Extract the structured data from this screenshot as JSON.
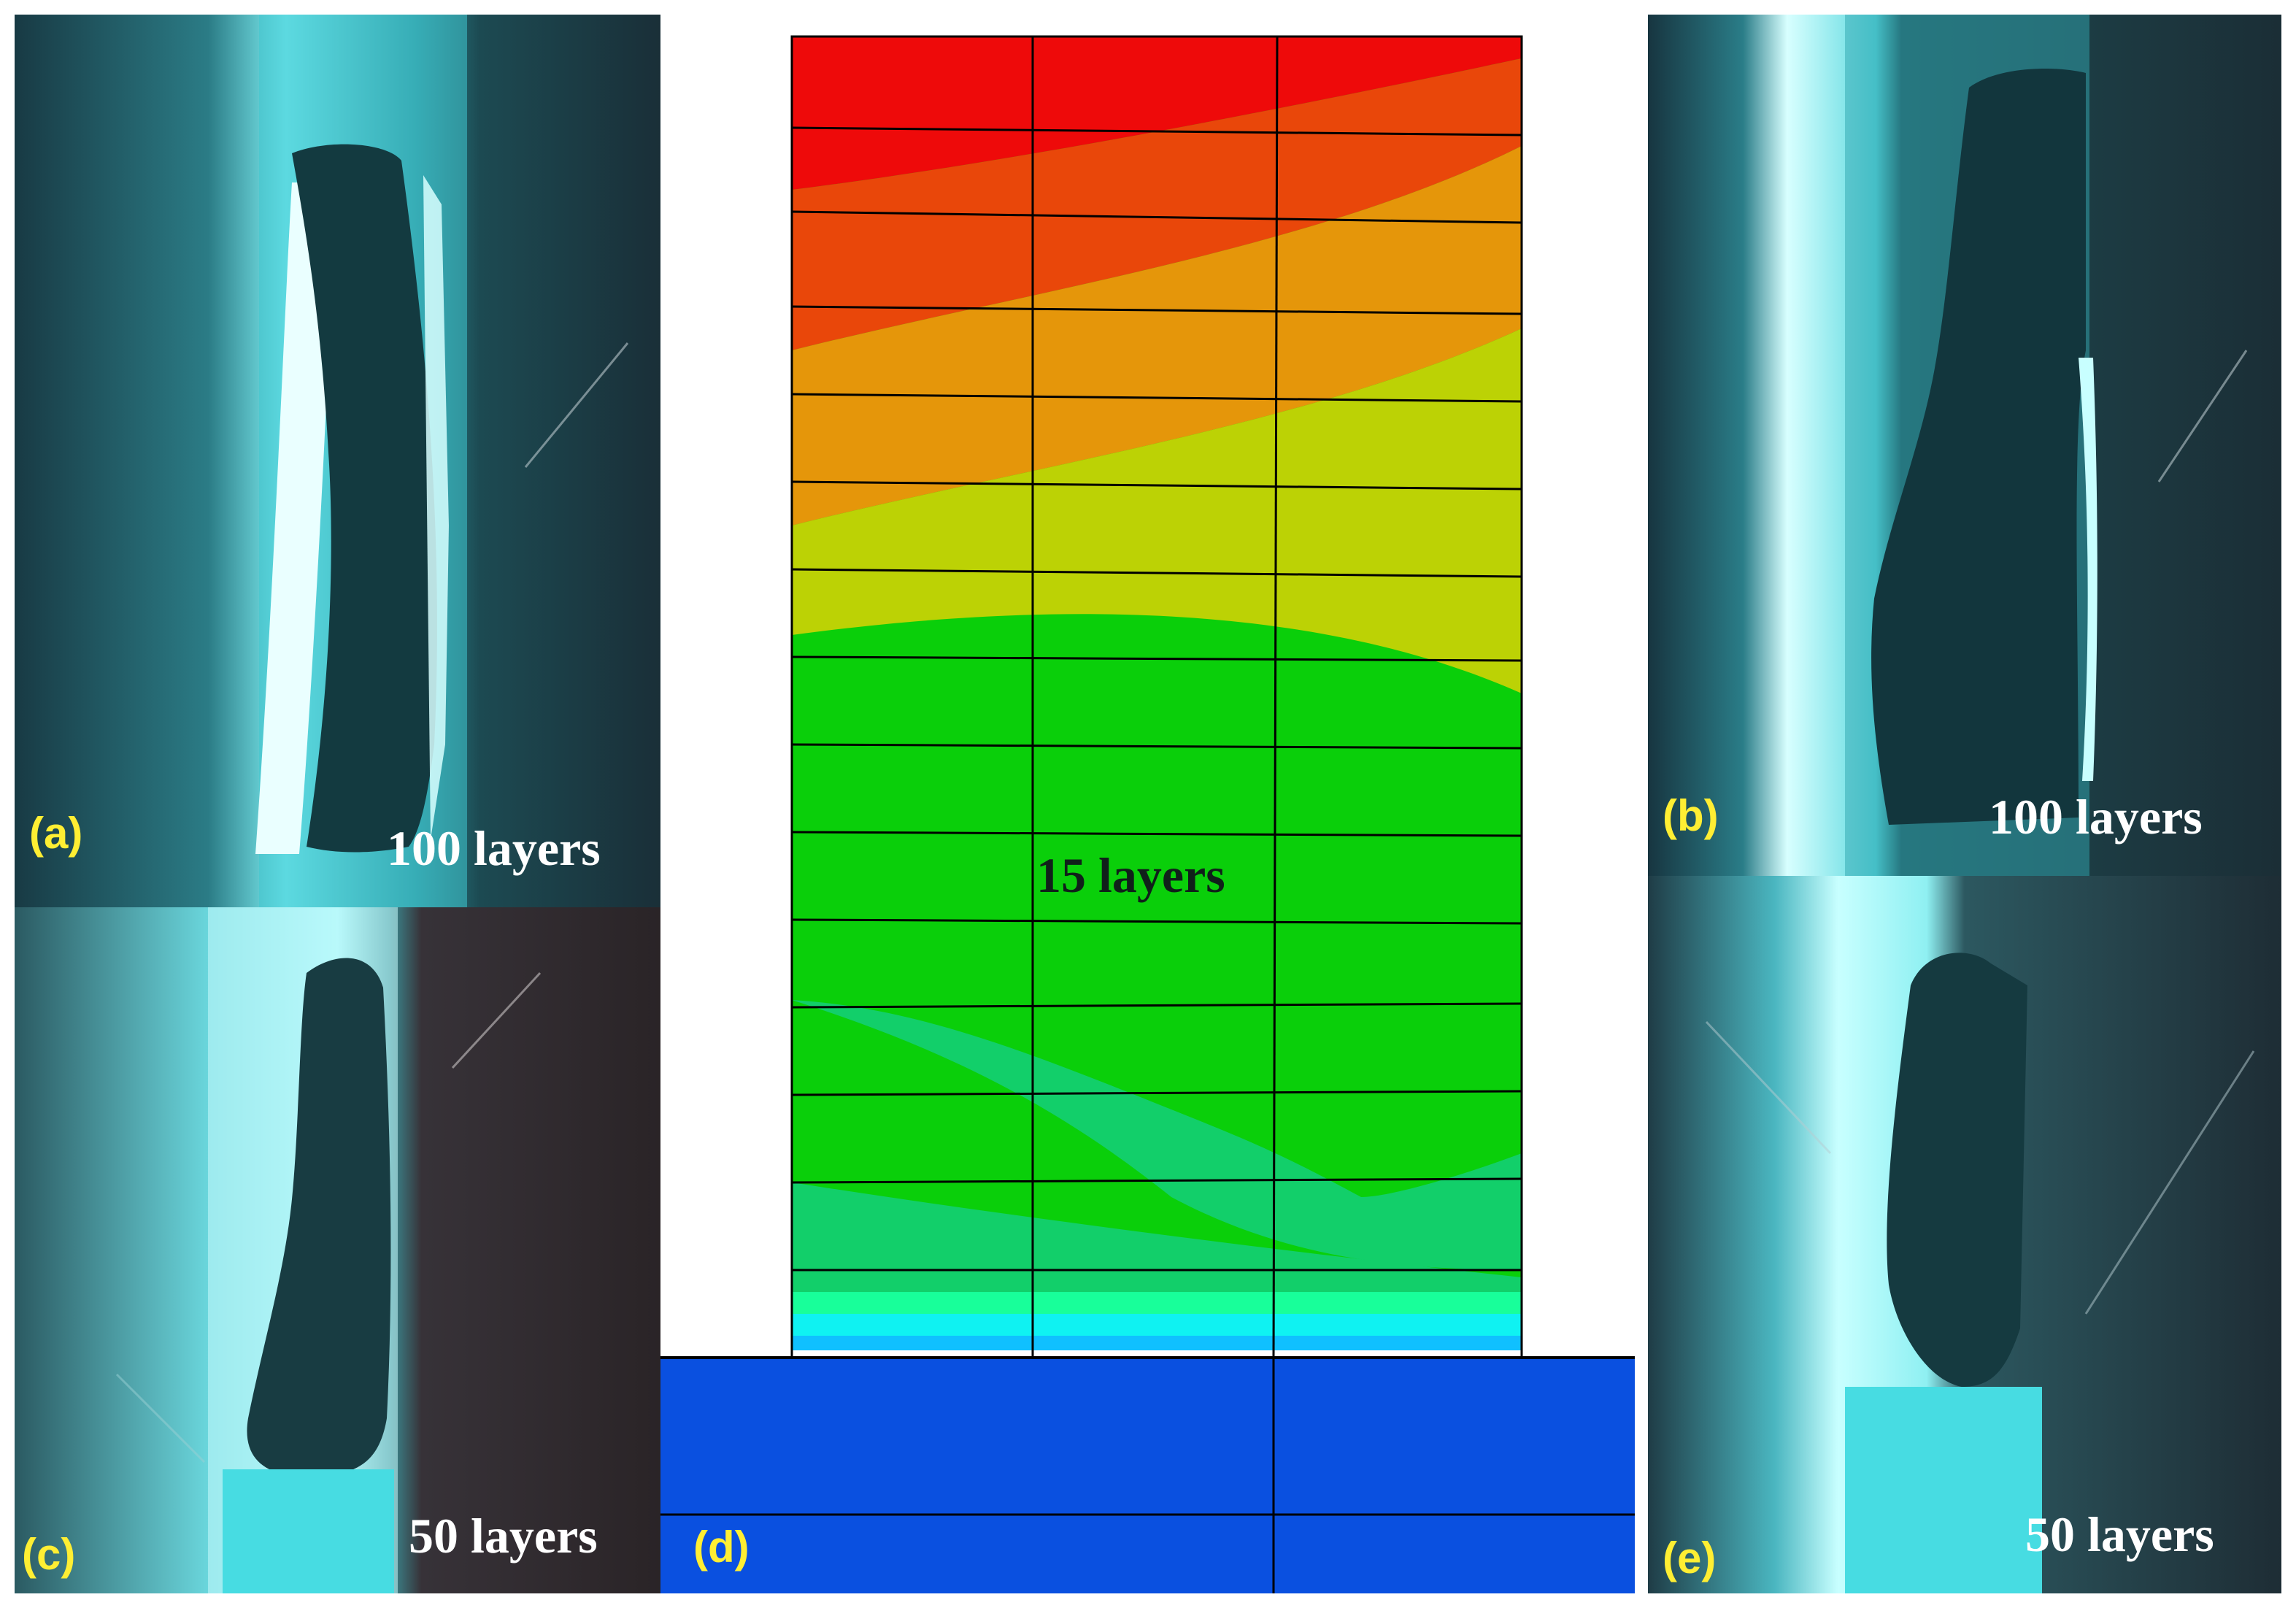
{
  "panels": {
    "a": {
      "tag": "(a)",
      "caption": "100 layers"
    },
    "b": {
      "tag": "(b)",
      "caption": "100 layers"
    },
    "c": {
      "tag": "(c)",
      "caption": "50 layers"
    },
    "d": {
      "tag": "(d)",
      "caption": "15 layers"
    },
    "e": {
      "tag": "(e)",
      "caption": "50 layers"
    }
  },
  "colors": {
    "photo_background": "#123e48",
    "glow": "#5fe8ee",
    "silhouette": "#143a40",
    "tag": "#ffee33",
    "contour": [
      "#ee0a0a",
      "#e9470a",
      "#e5960a",
      "#bcd205",
      "#0acf0a",
      "#12cf6a",
      "#18ff9a",
      "#0ff2f2",
      "#10c0ff",
      "#0a50e0"
    ]
  }
}
